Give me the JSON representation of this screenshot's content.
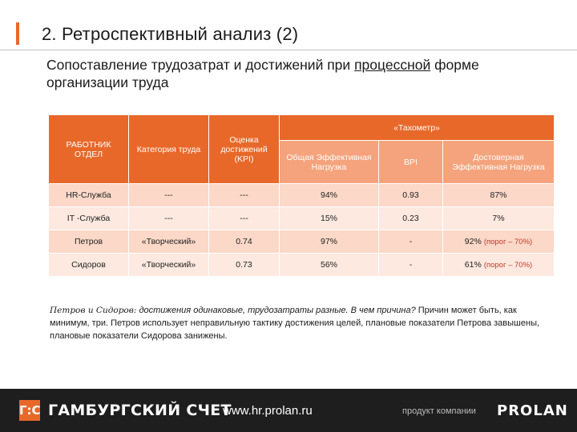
{
  "header": {
    "title": "2. Ретроспективный анализ (2)"
  },
  "subtitle": {
    "part1": "Сопоставление трудозатрат и достижений при ",
    "underlined": "процессной",
    "part2": " форме организации труда"
  },
  "table": {
    "headers": {
      "worker": "РАБОТНИК ОТДЕЛ",
      "category": "Категория труда",
      "kpi": "Оценка достижений (KPI)",
      "tachometer": "«Тахометр»",
      "total_load": "Общая Эффективная Нагрузка",
      "bpi": "BPI",
      "reliable_load": "Достоверная Эффективная Нагрузка"
    },
    "rows": [
      {
        "worker": "HR-Служба",
        "category": "---",
        "kpi": "---",
        "total": "94%",
        "bpi": "0.93",
        "reliable": "87%",
        "threshold": ""
      },
      {
        "worker": "IT -Служба",
        "category": "---",
        "kpi": "---",
        "total": "15%",
        "bpi": "0.23",
        "reliable": "7%",
        "threshold": ""
      },
      {
        "worker": "Петров",
        "category": "«Творческий»",
        "kpi": "0.74",
        "total": "97%",
        "bpi": "-",
        "reliable": "92%",
        "threshold": "(порог – 70%)"
      },
      {
        "worker": "Сидоров",
        "category": "«Творческий»",
        "kpi": "0.73",
        "total": "56%",
        "bpi": "-",
        "reliable": "61%",
        "threshold": "(порог – 70%)"
      }
    ]
  },
  "note": {
    "lead": "Петров и Сидоров:",
    "italic": " достижения одинаковые, трудозатраты разные",
    "question": ". В чем причина?",
    "body": " Причин может быть, как минимум, три. Петров использует неправильную тактику достижения целей, плановые показатели Петрова завышены, плановые показатели Сидорова занижены."
  },
  "footer": {
    "logo_mark": "Г:С",
    "logo_text": "ГАМБУРГСКИЙ СЧЕТ",
    "url": "www.hr.prolan.ru",
    "product": "продукт компании",
    "brand": "PROLAN"
  },
  "colors": {
    "accent": "#e8682a",
    "header_light": "#f4a37c",
    "cell_pale": "#fbd8c8",
    "cell_light": "#fde9df",
    "footer_bg": "#1e1e1e",
    "threshold_red": "#c0392b"
  }
}
